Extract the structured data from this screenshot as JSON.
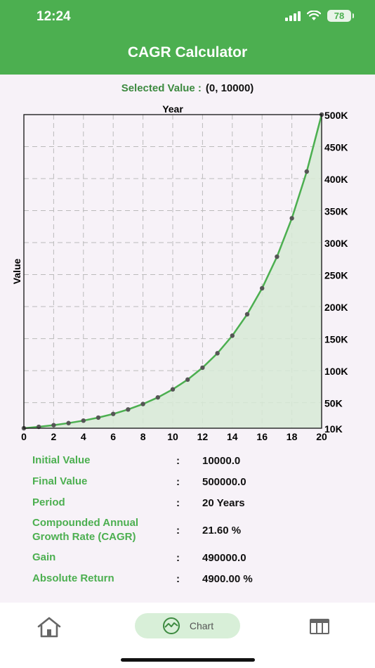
{
  "status_bar": {
    "time": "12:24",
    "battery": "78"
  },
  "header": {
    "title": "CAGR Calculator"
  },
  "selected": {
    "label": "Selected Value :",
    "value": "(0, 10000)"
  },
  "chart_data": {
    "type": "area",
    "title": "Year",
    "ylabel": "Value",
    "x": [
      0,
      1,
      2,
      3,
      4,
      5,
      6,
      7,
      8,
      9,
      10,
      11,
      12,
      13,
      14,
      15,
      16,
      17,
      18,
      19,
      20
    ],
    "series": [
      {
        "values": [
          10000,
          12160,
          14788,
          17983,
          21868,
          26592,
          32338,
          39325,
          47822,
          58155,
          70718,
          85995,
          104568,
          127157,
          154624,
          188024,
          228638,
          278016,
          338049,
          411062,
          500000
        ]
      }
    ],
    "xlim": [
      0,
      20
    ],
    "ylim": [
      10000,
      500000
    ],
    "x_ticks": [
      "0",
      "2",
      "4",
      "6",
      "8",
      "10",
      "12",
      "14",
      "16",
      "18",
      "20"
    ],
    "y_ticks": [
      "10K",
      "50K",
      "100K",
      "150K",
      "200K",
      "250K",
      "300K",
      "350K",
      "400K",
      "450K",
      "500K"
    ],
    "y_tick_values": [
      10000,
      50000,
      100000,
      150000,
      200000,
      250000,
      300000,
      350000,
      400000,
      450000,
      500000
    ],
    "y_axis_side": "right",
    "grid": true,
    "line_color": "#4caf50",
    "fill_color": "#d7ead6"
  },
  "results": [
    {
      "label": "Initial Value",
      "value": "10000.0"
    },
    {
      "label": "Final Value",
      "value": "500000.0"
    },
    {
      "label": "Period",
      "value": "20 Years"
    },
    {
      "label": "Compounded Annual Growth Rate (CAGR)",
      "value": "21.60 %"
    },
    {
      "label": "Gain",
      "value": "490000.0"
    },
    {
      "label": "Absolute Return",
      "value": "4900.00 %"
    }
  ],
  "colon": ":",
  "nav": {
    "chart_label": "Chart"
  },
  "colors": {
    "accent": "#4caf50",
    "background": "#f7f2f8"
  }
}
